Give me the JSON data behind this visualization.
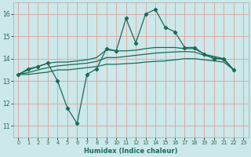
{
  "title": "",
  "xlabel": "Humidex (Indice chaleur)",
  "background_color": "#cce8e8",
  "grid_color": "#ddaaaa",
  "line_color": "#1a6b5a",
  "xlim": [
    -0.5,
    23.5
  ],
  "ylim": [
    10.5,
    16.5
  ],
  "xticks": [
    0,
    1,
    2,
    3,
    4,
    5,
    6,
    7,
    8,
    9,
    10,
    11,
    12,
    13,
    14,
    15,
    16,
    17,
    18,
    19,
    20,
    21,
    22,
    23
  ],
  "yticks": [
    11,
    12,
    13,
    14,
    15,
    16
  ],
  "x": [
    0,
    1,
    2,
    3,
    4,
    5,
    6,
    7,
    8,
    9,
    10,
    11,
    12,
    13,
    14,
    15,
    16,
    17,
    18,
    19,
    20,
    21,
    22,
    23
  ],
  "line_jagged": [
    13.3,
    13.55,
    13.65,
    13.8,
    13.0,
    11.8,
    11.1,
    13.3,
    13.55,
    14.45,
    14.35,
    15.8,
    14.7,
    16.0,
    16.2,
    15.4,
    15.2,
    14.5,
    14.5,
    14.2,
    14.0,
    14.0,
    13.5
  ],
  "line_upper": [
    13.3,
    13.5,
    13.65,
    13.8,
    13.85,
    13.85,
    13.9,
    13.95,
    14.05,
    14.4,
    14.35,
    14.35,
    14.38,
    14.45,
    14.5,
    14.5,
    14.5,
    14.45,
    14.45,
    14.2,
    14.1,
    14.0,
    13.5
  ],
  "line_mid": [
    13.3,
    13.38,
    13.5,
    13.6,
    13.68,
    13.72,
    13.76,
    13.8,
    13.88,
    14.05,
    14.05,
    14.1,
    14.15,
    14.2,
    14.25,
    14.28,
    14.3,
    14.32,
    14.3,
    14.15,
    14.05,
    13.95,
    13.5
  ],
  "line_lower": [
    13.3,
    13.3,
    13.35,
    13.4,
    13.5,
    13.5,
    13.55,
    13.6,
    13.65,
    13.75,
    13.75,
    13.78,
    13.8,
    13.85,
    13.88,
    13.9,
    13.95,
    14.0,
    14.0,
    13.95,
    13.9,
    13.85,
    13.5
  ],
  "x_jagged": [
    0,
    1,
    2,
    3,
    4,
    5,
    6,
    7,
    8,
    9,
    10,
    11,
    12,
    13,
    14,
    15,
    16,
    17,
    18,
    19,
    20,
    21,
    22
  ]
}
